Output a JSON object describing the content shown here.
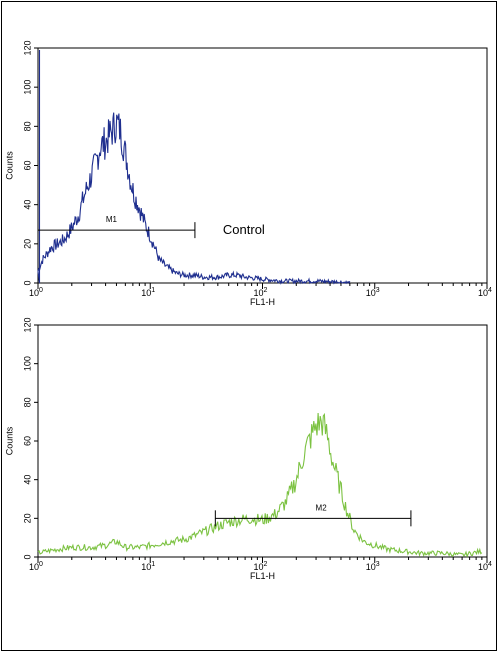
{
  "chart_data": [
    {
      "type": "line",
      "title": "",
      "xlabel": "FL1-H",
      "ylabel": "Counts",
      "x_scale": "log",
      "xlim": [
        1,
        10000
      ],
      "ylim": [
        0,
        120
      ],
      "y_ticks": [
        "0",
        "20",
        "40",
        "60",
        "80",
        "100",
        "120"
      ],
      "x_ticks": [
        {
          "base": "10",
          "exp": "0"
        },
        {
          "base": "10",
          "exp": "1"
        },
        {
          "base": "10",
          "exp": "2"
        },
        {
          "base": "10",
          "exp": "3"
        },
        {
          "base": "10",
          "exp": "4"
        }
      ],
      "color": "#1f2f8f",
      "series": [
        {
          "x": [
            1,
            1.1,
            1.2,
            1.3,
            1.5,
            1.7,
            2.0,
            2.3,
            2.6,
            3.0,
            3.3,
            3.6,
            4.0,
            4.3,
            4.6,
            5.0,
            5.4,
            5.8,
            6.2,
            6.7,
            7.2,
            7.8,
            8.4,
            9.0,
            10,
            11,
            12,
            13.5,
            15,
            17,
            20,
            25,
            30,
            40,
            50,
            60,
            70,
            100,
            150,
            200,
            300,
            500,
            600
          ],
          "y": [
            6,
            12,
            15,
            18,
            20,
            22,
            28,
            35,
            45,
            55,
            62,
            70,
            72,
            75,
            78,
            82,
            78,
            70,
            62,
            52,
            45,
            40,
            35,
            30,
            24,
            18,
            12,
            9,
            7,
            5,
            4,
            4,
            3,
            3,
            4,
            4,
            3,
            2,
            1,
            1,
            1,
            0.5,
            0
          ]
        }
      ],
      "gate": {
        "label": "M1",
        "x_start": 1,
        "x_end": 25,
        "y": 27
      },
      "annotation": "Control"
    },
    {
      "type": "line",
      "title": "",
      "xlabel": "FL1-H",
      "ylabel": "Counts",
      "x_scale": "log",
      "xlim": [
        1,
        10000
      ],
      "ylim": [
        0,
        120
      ],
      "y_ticks": [
        "0",
        "20",
        "40",
        "60",
        "80",
        "100",
        "120"
      ],
      "x_ticks": [
        {
          "base": "10",
          "exp": "0"
        },
        {
          "base": "10",
          "exp": "1"
        },
        {
          "base": "10",
          "exp": "2"
        },
        {
          "base": "10",
          "exp": "3"
        },
        {
          "base": "10",
          "exp": "4"
        }
      ],
      "color": "#7cc242",
      "series": [
        {
          "x": [
            1,
            1.2,
            1.5,
            2,
            3,
            4,
            5,
            6,
            8,
            10,
            12,
            15,
            20,
            25,
            30,
            40,
            50,
            60,
            80,
            100,
            130,
            160,
            200,
            230,
            260,
            300,
            340,
            380,
            420,
            480,
            550,
            650,
            800,
            1000,
            1300,
            1800,
            2500,
            4000,
            6000,
            9000
          ],
          "y": [
            2,
            3,
            4,
            5,
            5,
            6,
            8,
            5,
            5,
            6,
            7,
            8,
            9,
            11,
            13,
            16,
            18,
            19,
            20,
            19,
            22,
            28,
            40,
            52,
            60,
            68,
            70,
            62,
            50,
            38,
            26,
            14,
            8,
            6,
            4,
            3,
            2,
            2,
            1,
            3
          ]
        }
      ],
      "gate": {
        "label": "M2",
        "x_start": 38,
        "x_end": 2100,
        "y": 20
      }
    }
  ]
}
